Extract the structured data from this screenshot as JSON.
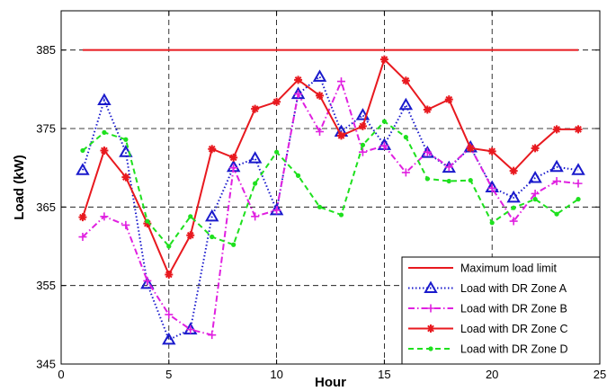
{
  "chart_data": {
    "type": "line",
    "title": "",
    "xlabel": "Hour",
    "ylabel": "Load (kW)",
    "xlim": [
      0,
      25
    ],
    "ylim": [
      345,
      390
    ],
    "xticks": [
      0,
      5,
      10,
      15,
      20,
      25
    ],
    "yticks": [
      345,
      355,
      365,
      375,
      385
    ],
    "grid": "dashed",
    "legend_position": "bottom-right",
    "series": [
      {
        "name": "Maximum load limit",
        "color": "#e8191f",
        "dash": "solid",
        "marker": "none",
        "x": [
          1,
          24
        ],
        "values": [
          385,
          385
        ]
      },
      {
        "name": "Load with DR Zone A",
        "color": "#1a1acc",
        "dash": "dotted",
        "marker": "triangle",
        "x": [
          1,
          2,
          3,
          4,
          5,
          6,
          7,
          8,
          9,
          10,
          11,
          12,
          13,
          14,
          15,
          16,
          17,
          18,
          19,
          20,
          21,
          22,
          23,
          24
        ],
        "values": [
          369.7,
          378.6,
          372.0,
          355.2,
          348.1,
          349.4,
          363.8,
          370.1,
          371.2,
          364.6,
          379.4,
          381.6,
          374.6,
          376.7,
          372.9,
          378.0,
          371.9,
          370.0,
          372.6,
          367.5,
          366.2,
          368.7,
          370.1,
          369.7
        ]
      },
      {
        "name": "Load with DR Zone B",
        "color": "#e020e0",
        "dash": "dashdot",
        "marker": "plus",
        "x": [
          1,
          2,
          3,
          4,
          5,
          6,
          7,
          8,
          9,
          10,
          11,
          12,
          13,
          14,
          15,
          16,
          17,
          18,
          19,
          20,
          21,
          22,
          23,
          24
        ],
        "values": [
          361.2,
          363.8,
          362.7,
          355.6,
          351.3,
          349.4,
          348.7,
          370.0,
          363.8,
          364.6,
          379.4,
          374.6,
          381.0,
          372.0,
          372.8,
          369.4,
          372.0,
          370.1,
          372.6,
          367.4,
          363.2,
          366.7,
          368.3,
          368.0
        ]
      },
      {
        "name": "Load with DR Zone C",
        "color": "#e8191f",
        "dash": "solid",
        "marker": "star",
        "x": [
          1,
          2,
          3,
          4,
          5,
          6,
          7,
          8,
          9,
          10,
          11,
          12,
          13,
          14,
          15,
          16,
          17,
          18,
          19,
          20,
          21,
          22,
          23,
          24
        ],
        "values": [
          363.7,
          372.2,
          368.8,
          362.9,
          356.4,
          361.4,
          372.4,
          371.3,
          377.5,
          378.4,
          381.2,
          379.2,
          374.1,
          375.3,
          383.8,
          381.1,
          377.4,
          378.7,
          372.5,
          372.1,
          369.6,
          372.5,
          374.9,
          374.9
        ]
      },
      {
        "name": "Load with DR Zone D",
        "color": "#1ee01e",
        "dash": "dashed",
        "marker": "dot",
        "x": [
          1,
          2,
          3,
          4,
          5,
          6,
          7,
          8,
          9,
          10,
          11,
          12,
          13,
          14,
          15,
          16,
          17,
          18,
          19,
          20,
          21,
          22,
          23,
          24
        ],
        "values": [
          372.2,
          374.5,
          373.6,
          363.2,
          360.0,
          363.8,
          361.2,
          360.2,
          368.0,
          372.0,
          369.0,
          365.0,
          364.0,
          372.9,
          375.9,
          373.9,
          368.6,
          368.3,
          368.4,
          363.0,
          364.9,
          366.0,
          364.1,
          366.0
        ]
      }
    ]
  }
}
